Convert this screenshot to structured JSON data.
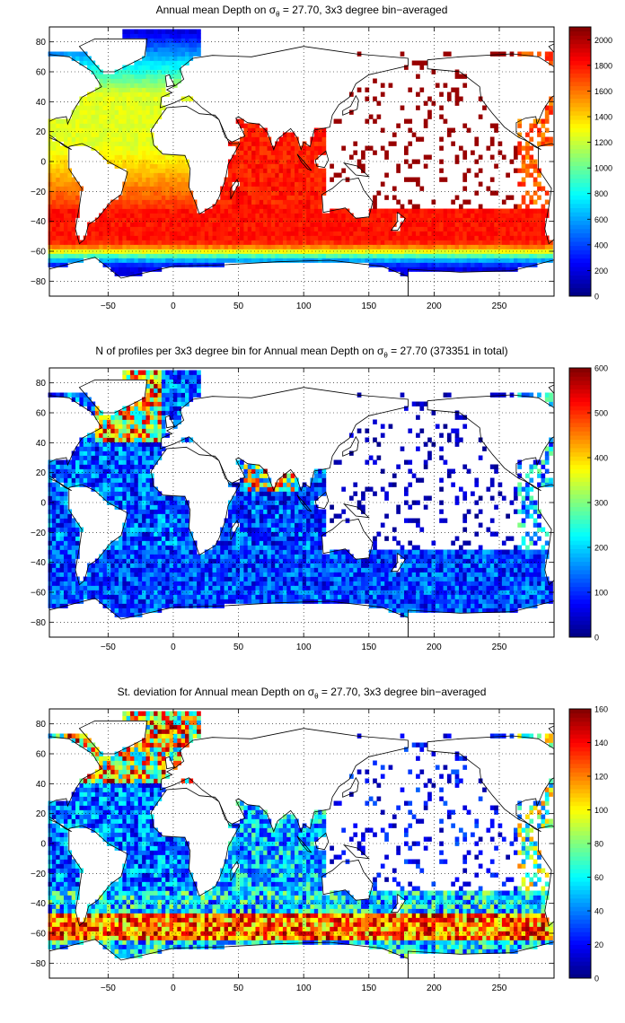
{
  "chart_data": [
    {
      "type": "heatmap",
      "title_prefix": "Annual mean Depth on ",
      "title_sigma": "σ",
      "title_sub": "θ",
      "title_suffix": " = 27.70, 3x3 degree bin−averaged",
      "xticks": [
        "−50",
        "0",
        "50",
        "100",
        "150",
        "200",
        "250"
      ],
      "yticks": [
        "80",
        "60",
        "40",
        "20",
        "0",
        "−20",
        "−40",
        "−60",
        "−80"
      ],
      "xlim": [
        -95,
        292
      ],
      "ylim": [
        -90,
        90
      ],
      "grid": true,
      "colorbar": {
        "min": 0,
        "max": 2100,
        "ticks": [
          "2000",
          "1800",
          "1600",
          "1400",
          "1200",
          "1000",
          "800",
          "600",
          "400",
          "200",
          "0"
        ],
        "colormap": "jet"
      },
      "field": "depth"
    },
    {
      "type": "heatmap",
      "title_prefix": "N of profiles per 3x3 degree bin for Annual mean Depth on ",
      "title_sigma": "σ",
      "title_sub": "θ",
      "title_suffix": " = 27.70 (373351 in total)",
      "xticks": [
        "−50",
        "0",
        "50",
        "100",
        "150",
        "200",
        "250"
      ],
      "yticks": [
        "80",
        "60",
        "40",
        "20",
        "0",
        "−20",
        "−40",
        "−60",
        "−80"
      ],
      "xlim": [
        -95,
        292
      ],
      "ylim": [
        -90,
        90
      ],
      "grid": true,
      "colorbar": {
        "min": 0,
        "max": 600,
        "ticks": [
          "600",
          "500",
          "400",
          "300",
          "200",
          "100",
          "0"
        ],
        "colormap": "jet"
      },
      "field": "count"
    },
    {
      "type": "heatmap",
      "title_prefix": "St. deviation for Annual mean Depth on ",
      "title_sigma": "σ",
      "title_sub": "θ",
      "title_suffix": " = 27.70, 3x3 degree bin−averaged",
      "xticks": [
        "−50",
        "0",
        "50",
        "100",
        "150",
        "200",
        "250"
      ],
      "yticks": [
        "80",
        "60",
        "40",
        "20",
        "0",
        "−20",
        "−40",
        "−60",
        "−80"
      ],
      "xlim": [
        -95,
        292
      ],
      "ylim": [
        -90,
        90
      ],
      "grid": true,
      "colorbar": {
        "min": 0,
        "max": 160,
        "ticks": [
          "160",
          "140",
          "120",
          "100",
          "80",
          "60",
          "40",
          "20",
          "0"
        ],
        "colormap": "jet"
      },
      "field": "std"
    }
  ]
}
